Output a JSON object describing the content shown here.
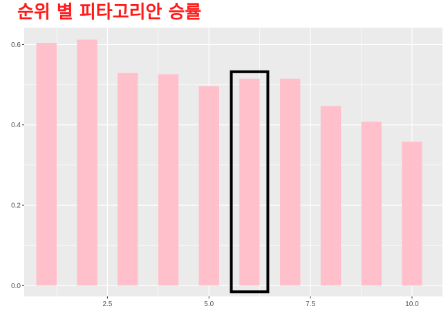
{
  "chart_data": {
    "type": "bar",
    "title": "순위 별 피타고리안 승률",
    "x": [
      1,
      2,
      3,
      4,
      5,
      6,
      7,
      8,
      9,
      10
    ],
    "values": [
      0.604,
      0.612,
      0.529,
      0.526,
      0.496,
      0.515,
      0.515,
      0.447,
      0.408,
      0.358
    ],
    "xlim": [
      0.45,
      10.75
    ],
    "ylim": [
      -0.027,
      0.642
    ],
    "x_ticks": [
      "2.5",
      "5.0",
      "7.5",
      "10.0"
    ],
    "y_ticks": [
      "0.0",
      "0.2",
      "0.4",
      "0.6"
    ],
    "xlabel": "",
    "ylabel": "",
    "grid": true,
    "highlight_x": 6,
    "colors": {
      "bar": "#ffc0cb",
      "panel": "#ebebeb",
      "grid": "#ffffff",
      "highlight_box": "#000000",
      "title": "#ff1a1a"
    }
  }
}
